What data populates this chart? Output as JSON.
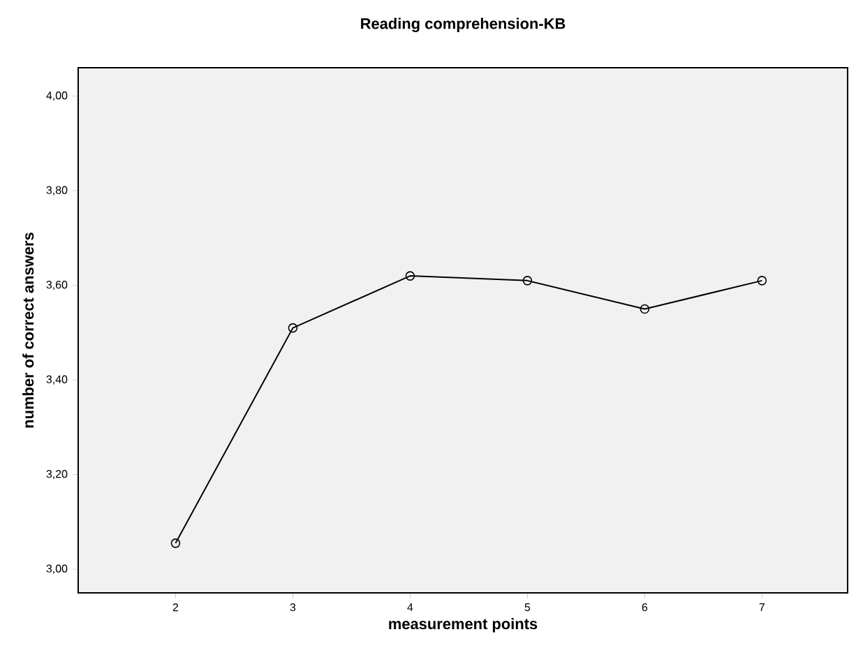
{
  "chart_data": {
    "type": "line",
    "title": "Reading comprehension-KB",
    "xlabel": "measurement points",
    "ylabel": "number of correct answers",
    "x": [
      2,
      3,
      4,
      5,
      6,
      7
    ],
    "series": [
      {
        "color": "#000000",
        "values": [
          3.055,
          3.51,
          3.62,
          3.61,
          3.55,
          3.61
        ]
      }
    ],
    "xlim": [
      1.17,
      7.73
    ],
    "xticks": [
      2,
      3,
      4,
      5,
      6,
      7
    ],
    "ylim": [
      2.95,
      4.06
    ],
    "yticks": [
      {
        "value": 3.0,
        "label": "3,00"
      },
      {
        "value": 3.2,
        "label": "3,20"
      },
      {
        "value": 3.4,
        "label": "3,40"
      },
      {
        "value": 3.6,
        "label": "3,60"
      },
      {
        "value": 3.8,
        "label": "3,80"
      },
      {
        "value": 4.0,
        "label": "4,00"
      }
    ],
    "marker": "circle",
    "line_style": "solid"
  }
}
